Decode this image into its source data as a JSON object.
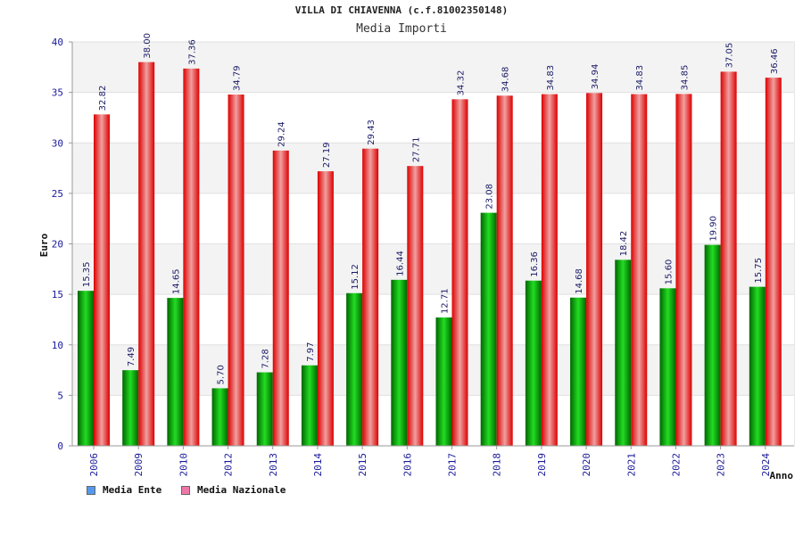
{
  "header": {
    "title": "VILLA DI CHIAVENNA (c.f.81002350148)",
    "subtitle": "Media Importi"
  },
  "chart_data": {
    "type": "bar",
    "categories": [
      "2006",
      "2009",
      "2010",
      "2012",
      "2013",
      "2014",
      "2015",
      "2016",
      "2017",
      "2018",
      "2019",
      "2020",
      "2021",
      "2022",
      "2023",
      "2024"
    ],
    "series": [
      {
        "name": "Media Ente",
        "color": "#00aa00",
        "values": [
          15.35,
          7.49,
          14.65,
          5.7,
          7.28,
          7.97,
          15.12,
          16.44,
          12.71,
          23.08,
          16.36,
          14.68,
          18.42,
          15.6,
          19.9,
          15.75
        ],
        "labels": [
          "15.35",
          "7.49",
          "14.65",
          "5.70",
          "7.28",
          "7.97",
          "15.12",
          "16.44",
          "12.71",
          "23.08",
          "16.36",
          "14.68",
          "18.42",
          "15.60",
          "19.90",
          "15.75"
        ]
      },
      {
        "name": "Media Nazionale",
        "color": "#ee1111",
        "values": [
          32.82,
          38.0,
          37.36,
          34.79,
          29.24,
          27.19,
          29.43,
          27.71,
          34.32,
          34.68,
          34.83,
          34.94,
          34.83,
          34.85,
          37.05,
          36.46
        ],
        "labels": [
          "32.82",
          "38.00",
          "37.36",
          "34.79",
          "29.24",
          "27.19",
          "29.43",
          "27.71",
          "34.32",
          "34.68",
          "34.83",
          "34.94",
          "34.83",
          "34.85",
          "37.05",
          "36.46"
        ]
      }
    ],
    "xlabel": "Anno",
    "ylabel": "Euro",
    "ylim": [
      0,
      40
    ],
    "yticks": [
      "0",
      "5",
      "10",
      "15",
      "20",
      "25",
      "30",
      "35",
      "40"
    ],
    "grid": true,
    "legend_position": "bottom-left"
  },
  "legend": {
    "items": [
      {
        "label": "Media Ente",
        "color": "#5599ee"
      },
      {
        "label": "Media Nazionale",
        "color": "#ee77aa"
      }
    ]
  }
}
